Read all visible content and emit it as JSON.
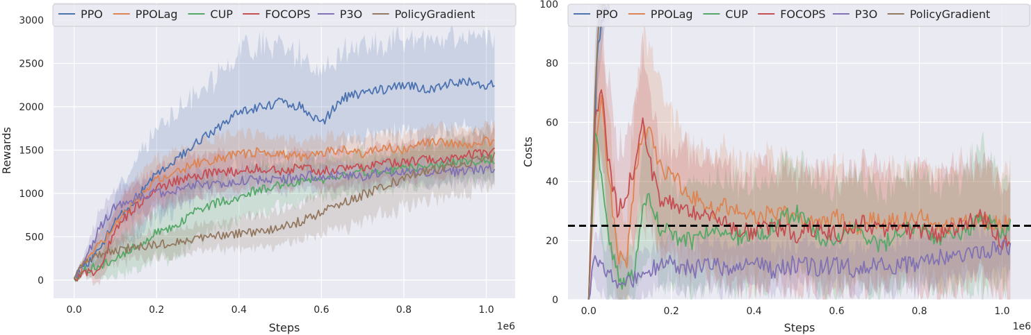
{
  "chart_data": [
    {
      "type": "line",
      "xlabel": "Steps",
      "ylabel": "Rewards",
      "x_offset_label": "1e6",
      "xlim": [
        -0.05,
        1.07
      ],
      "ylim": [
        -210,
        3200
      ],
      "xticks": [
        0.0,
        0.2,
        0.4,
        0.6,
        0.8,
        1.0
      ],
      "xtick_labels": [
        "0.0",
        "0.2",
        "0.4",
        "0.6",
        "0.8",
        "1.0"
      ],
      "yticks": [
        0,
        500,
        1000,
        1500,
        2000,
        2500,
        3000
      ],
      "ytick_labels": [
        "0",
        "500",
        "1000",
        "1500",
        "2000",
        "2500",
        "3000"
      ],
      "grid": true,
      "legend_position": "top",
      "shaded_band": "mean ± spread",
      "series": [
        {
          "name": "PPO",
          "color": "#4c72b0",
          "x": [
            0.0,
            0.03,
            0.06,
            0.1,
            0.15,
            0.2,
            0.25,
            0.3,
            0.35,
            0.4,
            0.45,
            0.5,
            0.55,
            0.6,
            0.65,
            0.7,
            0.75,
            0.8,
            0.85,
            0.9,
            0.95,
            1.0,
            1.02
          ],
          "y": [
            20,
            180,
            350,
            700,
            950,
            1250,
            1400,
            1600,
            1750,
            1950,
            2000,
            2050,
            2000,
            1800,
            2100,
            2150,
            2200,
            2250,
            2200,
            2250,
            2300,
            2250,
            2280
          ],
          "spread": [
            0,
            50,
            200,
            300,
            450,
            500,
            550,
            600,
            600,
            700,
            750,
            650,
            600,
            550,
            550,
            550,
            550,
            550,
            550,
            550,
            550,
            550,
            550
          ]
        },
        {
          "name": "PPOLag",
          "color": "#dd8452",
          "x": [
            0.0,
            0.03,
            0.06,
            0.1,
            0.15,
            0.2,
            0.25,
            0.3,
            0.35,
            0.4,
            0.45,
            0.5,
            0.55,
            0.6,
            0.65,
            0.7,
            0.75,
            0.8,
            0.85,
            0.9,
            0.95,
            1.0,
            1.02
          ],
          "y": [
            20,
            200,
            400,
            650,
            900,
            1150,
            1250,
            1350,
            1400,
            1450,
            1480,
            1450,
            1420,
            1480,
            1500,
            1450,
            1550,
            1500,
            1580,
            1600,
            1550,
            1600,
            1610
          ],
          "spread": [
            0,
            50,
            150,
            200,
            250,
            250,
            250,
            250,
            250,
            230,
            200,
            200,
            180,
            180,
            180,
            180,
            180,
            180,
            180,
            180,
            180,
            180,
            180
          ]
        },
        {
          "name": "CUP",
          "color": "#55a868",
          "x": [
            0.0,
            0.03,
            0.06,
            0.1,
            0.15,
            0.2,
            0.25,
            0.3,
            0.35,
            0.4,
            0.45,
            0.5,
            0.55,
            0.6,
            0.65,
            0.7,
            0.75,
            0.8,
            0.85,
            0.9,
            0.95,
            1.0,
            1.02
          ],
          "y": [
            20,
            120,
            150,
            250,
            400,
            550,
            650,
            800,
            900,
            950,
            1050,
            1100,
            1150,
            1150,
            1200,
            1250,
            1250,
            1300,
            1300,
            1350,
            1350,
            1400,
            1380
          ],
          "spread": [
            0,
            50,
            150,
            200,
            250,
            300,
            350,
            350,
            300,
            250,
            250,
            250,
            230,
            230,
            220,
            220,
            220,
            220,
            220,
            220,
            220,
            220,
            220
          ]
        },
        {
          "name": "FOCOPS",
          "color": "#c44e52",
          "x": [
            0.0,
            0.03,
            0.06,
            0.1,
            0.15,
            0.2,
            0.25,
            0.3,
            0.35,
            0.4,
            0.45,
            0.5,
            0.55,
            0.6,
            0.65,
            0.7,
            0.75,
            0.8,
            0.85,
            0.9,
            0.95,
            1.0,
            1.02
          ],
          "y": [
            20,
            100,
            100,
            600,
            850,
            1050,
            1150,
            1200,
            1250,
            1250,
            1300,
            1250,
            1300,
            1250,
            1300,
            1300,
            1350,
            1350,
            1400,
            1400,
            1450,
            1450,
            1480
          ],
          "spread": [
            0,
            50,
            150,
            250,
            250,
            250,
            250,
            230,
            220,
            200,
            200,
            200,
            200,
            200,
            200,
            200,
            200,
            200,
            200,
            200,
            200,
            200,
            200
          ]
        },
        {
          "name": "P3O",
          "color": "#8172b3",
          "x": [
            0.0,
            0.03,
            0.06,
            0.1,
            0.15,
            0.2,
            0.25,
            0.3,
            0.35,
            0.4,
            0.45,
            0.5,
            0.55,
            0.6,
            0.65,
            0.7,
            0.75,
            0.8,
            0.85,
            0.9,
            0.95,
            1.0,
            1.02
          ],
          "y": [
            20,
            250,
            600,
            850,
            950,
            1000,
            1050,
            1100,
            1100,
            1150,
            1150,
            1150,
            1200,
            1200,
            1200,
            1200,
            1250,
            1250,
            1250,
            1250,
            1250,
            1280,
            1290
          ],
          "spread": [
            0,
            100,
            200,
            200,
            200,
            180,
            170,
            160,
            160,
            150,
            150,
            150,
            150,
            150,
            150,
            150,
            150,
            150,
            150,
            150,
            150,
            150,
            150
          ]
        },
        {
          "name": "PolicyGradient",
          "color": "#937860",
          "x": [
            0.0,
            0.03,
            0.06,
            0.1,
            0.15,
            0.2,
            0.25,
            0.3,
            0.35,
            0.4,
            0.45,
            0.5,
            0.55,
            0.6,
            0.65,
            0.7,
            0.75,
            0.8,
            0.85,
            0.9,
            0.95,
            1.0,
            1.02
          ],
          "y": [
            20,
            220,
            300,
            330,
            380,
            410,
            440,
            480,
            510,
            530,
            560,
            600,
            680,
            780,
            880,
            980,
            1080,
            1180,
            1250,
            1300,
            1350,
            1400,
            1420
          ],
          "spread": [
            0,
            80,
            150,
            150,
            150,
            150,
            150,
            150,
            160,
            170,
            180,
            200,
            220,
            250,
            280,
            300,
            320,
            330,
            330,
            330,
            330,
            330,
            330
          ]
        }
      ]
    },
    {
      "type": "line",
      "xlabel": "Steps",
      "ylabel": "Costs",
      "x_offset_label": "1e6",
      "xlim": [
        -0.05,
        1.07
      ],
      "ylim": [
        0,
        100
      ],
      "xticks": [
        0.0,
        0.2,
        0.4,
        0.6,
        0.8,
        1.0
      ],
      "xtick_labels": [
        "0.0",
        "0.2",
        "0.4",
        "0.6",
        "0.8",
        "1.0"
      ],
      "yticks": [
        0,
        20,
        40,
        60,
        80,
        100
      ],
      "ytick_labels": [
        "0",
        "20",
        "40",
        "60",
        "80",
        "100"
      ],
      "grid": true,
      "legend_position": "top",
      "cost_limit": 25,
      "shaded_band": "mean ± spread",
      "series": [
        {
          "name": "PPO",
          "color": "#4c72b0",
          "x": [
            0.0,
            0.01,
            0.02,
            0.03,
            0.04,
            0.05
          ],
          "y": [
            0,
            40,
            80,
            95,
            100,
            100
          ],
          "spread": [
            0,
            10,
            15,
            10,
            5,
            5
          ]
        },
        {
          "name": "PPOLag",
          "color": "#dd8452",
          "x": [
            0.0,
            0.015,
            0.03,
            0.05,
            0.07,
            0.09,
            0.11,
            0.13,
            0.15,
            0.17,
            0.2,
            0.25,
            0.3,
            0.35,
            0.4,
            0.45,
            0.5,
            0.55,
            0.6,
            0.65,
            0.7,
            0.75,
            0.8,
            0.85,
            0.9,
            0.95,
            1.0,
            1.02
          ],
          "y": [
            0,
            50,
            70,
            40,
            15,
            10,
            40,
            55,
            60,
            45,
            42,
            35,
            30,
            32,
            28,
            30,
            27,
            26,
            28,
            25,
            27,
            26,
            28,
            25,
            26,
            27,
            25,
            26
          ],
          "spread": [
            0,
            15,
            20,
            20,
            15,
            15,
            25,
            30,
            30,
            25,
            20,
            18,
            18,
            18,
            18,
            18,
            18,
            18,
            18,
            18,
            18,
            18,
            18,
            18,
            18,
            18,
            18,
            18
          ]
        },
        {
          "name": "CUP",
          "color": "#55a868",
          "x": [
            0.0,
            0.015,
            0.03,
            0.05,
            0.07,
            0.09,
            0.11,
            0.13,
            0.15,
            0.17,
            0.2,
            0.25,
            0.3,
            0.35,
            0.4,
            0.45,
            0.5,
            0.55,
            0.6,
            0.65,
            0.7,
            0.75,
            0.8,
            0.85,
            0.9,
            0.95,
            1.0,
            1.02
          ],
          "y": [
            0,
            55,
            45,
            20,
            8,
            5,
            10,
            30,
            35,
            25,
            22,
            20,
            25,
            22,
            20,
            25,
            30,
            22,
            20,
            25,
            18,
            22,
            25,
            20,
            22,
            28,
            22,
            24
          ],
          "spread": [
            0,
            15,
            20,
            20,
            10,
            8,
            12,
            20,
            20,
            18,
            18,
            18,
            18,
            18,
            18,
            18,
            18,
            18,
            18,
            18,
            18,
            18,
            18,
            18,
            18,
            25,
            18,
            18
          ]
        },
        {
          "name": "FOCOPS",
          "color": "#c44e52",
          "x": [
            0.0,
            0.015,
            0.03,
            0.05,
            0.07,
            0.09,
            0.11,
            0.13,
            0.15,
            0.17,
            0.2,
            0.25,
            0.3,
            0.35,
            0.4,
            0.45,
            0.5,
            0.55,
            0.6,
            0.65,
            0.7,
            0.75,
            0.8,
            0.85,
            0.9,
            0.95,
            1.0,
            1.02
          ],
          "y": [
            0,
            60,
            72,
            45,
            30,
            35,
            45,
            60,
            45,
            35,
            32,
            30,
            28,
            25,
            23,
            25,
            22,
            24,
            22,
            26,
            25,
            23,
            24,
            22,
            25,
            28,
            20,
            18
          ],
          "spread": [
            0,
            15,
            20,
            25,
            20,
            20,
            20,
            25,
            22,
            20,
            20,
            20,
            20,
            20,
            20,
            20,
            20,
            20,
            20,
            20,
            20,
            20,
            20,
            20,
            20,
            20,
            20,
            20
          ]
        },
        {
          "name": "P3O",
          "color": "#8172b3",
          "x": [
            0.0,
            0.015,
            0.03,
            0.05,
            0.07,
            0.09,
            0.11,
            0.13,
            0.15,
            0.17,
            0.2,
            0.25,
            0.3,
            0.35,
            0.4,
            0.45,
            0.5,
            0.55,
            0.6,
            0.65,
            0.7,
            0.75,
            0.8,
            0.85,
            0.9,
            0.95,
            1.0,
            1.02
          ],
          "y": [
            0,
            15,
            10,
            8,
            6,
            5,
            7,
            9,
            10,
            12,
            12,
            10,
            12,
            10,
            12,
            10,
            12,
            11,
            12,
            10,
            12,
            11,
            13,
            14,
            15,
            16,
            18,
            17
          ],
          "spread": [
            0,
            8,
            10,
            10,
            8,
            8,
            8,
            8,
            8,
            8,
            8,
            8,
            8,
            8,
            8,
            8,
            8,
            8,
            8,
            8,
            8,
            8,
            8,
            8,
            8,
            8,
            8,
            8
          ]
        },
        {
          "name": "PolicyGradient",
          "color": "#937860",
          "x": [
            0.0,
            0.01,
            0.02,
            0.03,
            0.04,
            0.05
          ],
          "y": [
            0,
            45,
            85,
            98,
            100,
            100
          ],
          "spread": [
            0,
            15,
            15,
            10,
            5,
            5
          ]
        }
      ]
    }
  ]
}
